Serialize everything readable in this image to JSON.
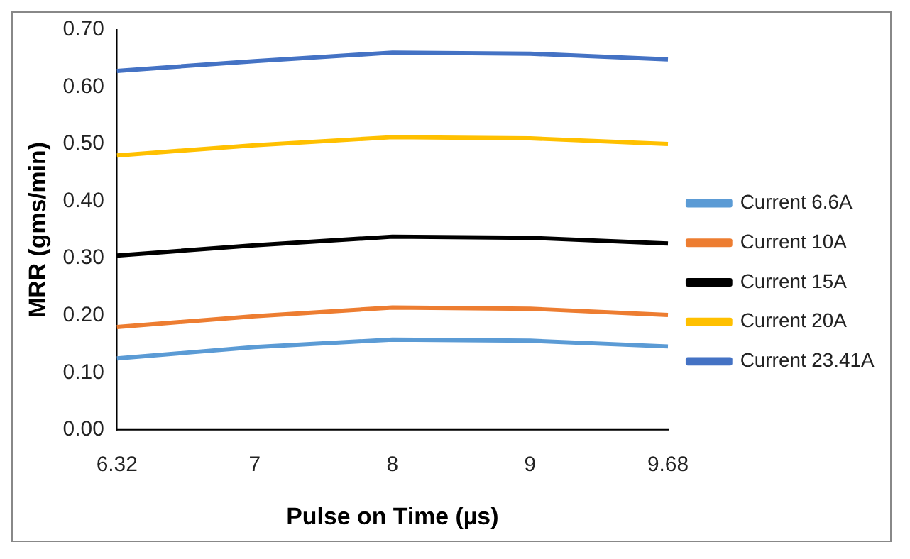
{
  "chart_data": {
    "type": "line",
    "xlabel": "Pulse on Time (µs)",
    "ylabel": "MRR (gms/min)",
    "categories": [
      "6.32",
      "7",
      "8",
      "9",
      "9.68"
    ],
    "ylim": [
      0,
      0.7
    ],
    "yticks": [
      {
        "value": 0,
        "label": "0.00"
      },
      {
        "value": 0.1,
        "label": "0.10"
      },
      {
        "value": 0.2,
        "label": "0.20"
      },
      {
        "value": 0.3,
        "label": "0.30"
      },
      {
        "value": 0.4,
        "label": "0.40"
      },
      {
        "value": 0.5,
        "label": "0.50"
      },
      {
        "value": 0.6,
        "label": "0.60"
      },
      {
        "value": 0.7,
        "label": "0.70"
      }
    ],
    "grid": false,
    "legend": "right",
    "marker": "none",
    "line_style": "solid",
    "series": [
      {
        "name": "Current 6.6A",
        "color": "#5b9bd5",
        "values": [
          0.125,
          0.145,
          0.158,
          0.156,
          0.146
        ]
      },
      {
        "name": "Current 10A",
        "color": "#ed7d31",
        "values": [
          0.18,
          0.199,
          0.214,
          0.212,
          0.201
        ]
      },
      {
        "name": "Current 15A",
        "color": "#000000",
        "values": [
          0.305,
          0.323,
          0.338,
          0.336,
          0.326
        ]
      },
      {
        "name": "Current 20A",
        "color": "#ffc000",
        "values": [
          0.48,
          0.498,
          0.512,
          0.51,
          0.5
        ]
      },
      {
        "name": "Current 23.41A",
        "color": "#4472c4",
        "values": [
          0.628,
          0.645,
          0.66,
          0.658,
          0.648
        ]
      }
    ]
  }
}
